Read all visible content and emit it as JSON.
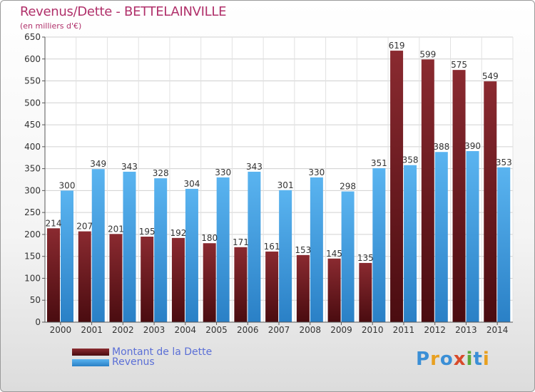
{
  "title": "Revenus/Dette - BETTELAINVILLE",
  "subtitle": "(en milliers d'€)",
  "legend": {
    "debt_label": "Montant de la Dette",
    "revenue_label": "Revenus"
  },
  "logo_text": "Proxiti",
  "colors": {
    "debt": "#7a1f24",
    "debt_dark": "#4a0c10",
    "revenue": "#4aa8e8",
    "revenue_dark": "#2a7fc4",
    "title": "#b0306a"
  },
  "chart_data": {
    "type": "bar",
    "title": "Revenus/Dette - BETTELAINVILLE",
    "subtitle": "(en milliers d'€)",
    "categories": [
      "2000",
      "2001",
      "2002",
      "2003",
      "2004",
      "2005",
      "2006",
      "2007",
      "2008",
      "2009",
      "2010",
      "2011",
      "2012",
      "2013",
      "2014"
    ],
    "series": [
      {
        "name": "Montant de la Dette",
        "values": [
          214,
          207,
          201,
          195,
          192,
          180,
          171,
          161,
          153,
          145,
          135,
          619,
          599,
          575,
          549
        ]
      },
      {
        "name": "Revenus",
        "values": [
          300,
          349,
          343,
          328,
          304,
          330,
          343,
          301,
          330,
          298,
          351,
          358,
          388,
          390,
          353
        ]
      }
    ],
    "ylim": [
      0,
      650
    ],
    "yticks": [
      0,
      50,
      100,
      150,
      200,
      250,
      300,
      350,
      400,
      450,
      500,
      550,
      600,
      650
    ],
    "grid": true,
    "legend_position": "bottom-left"
  }
}
